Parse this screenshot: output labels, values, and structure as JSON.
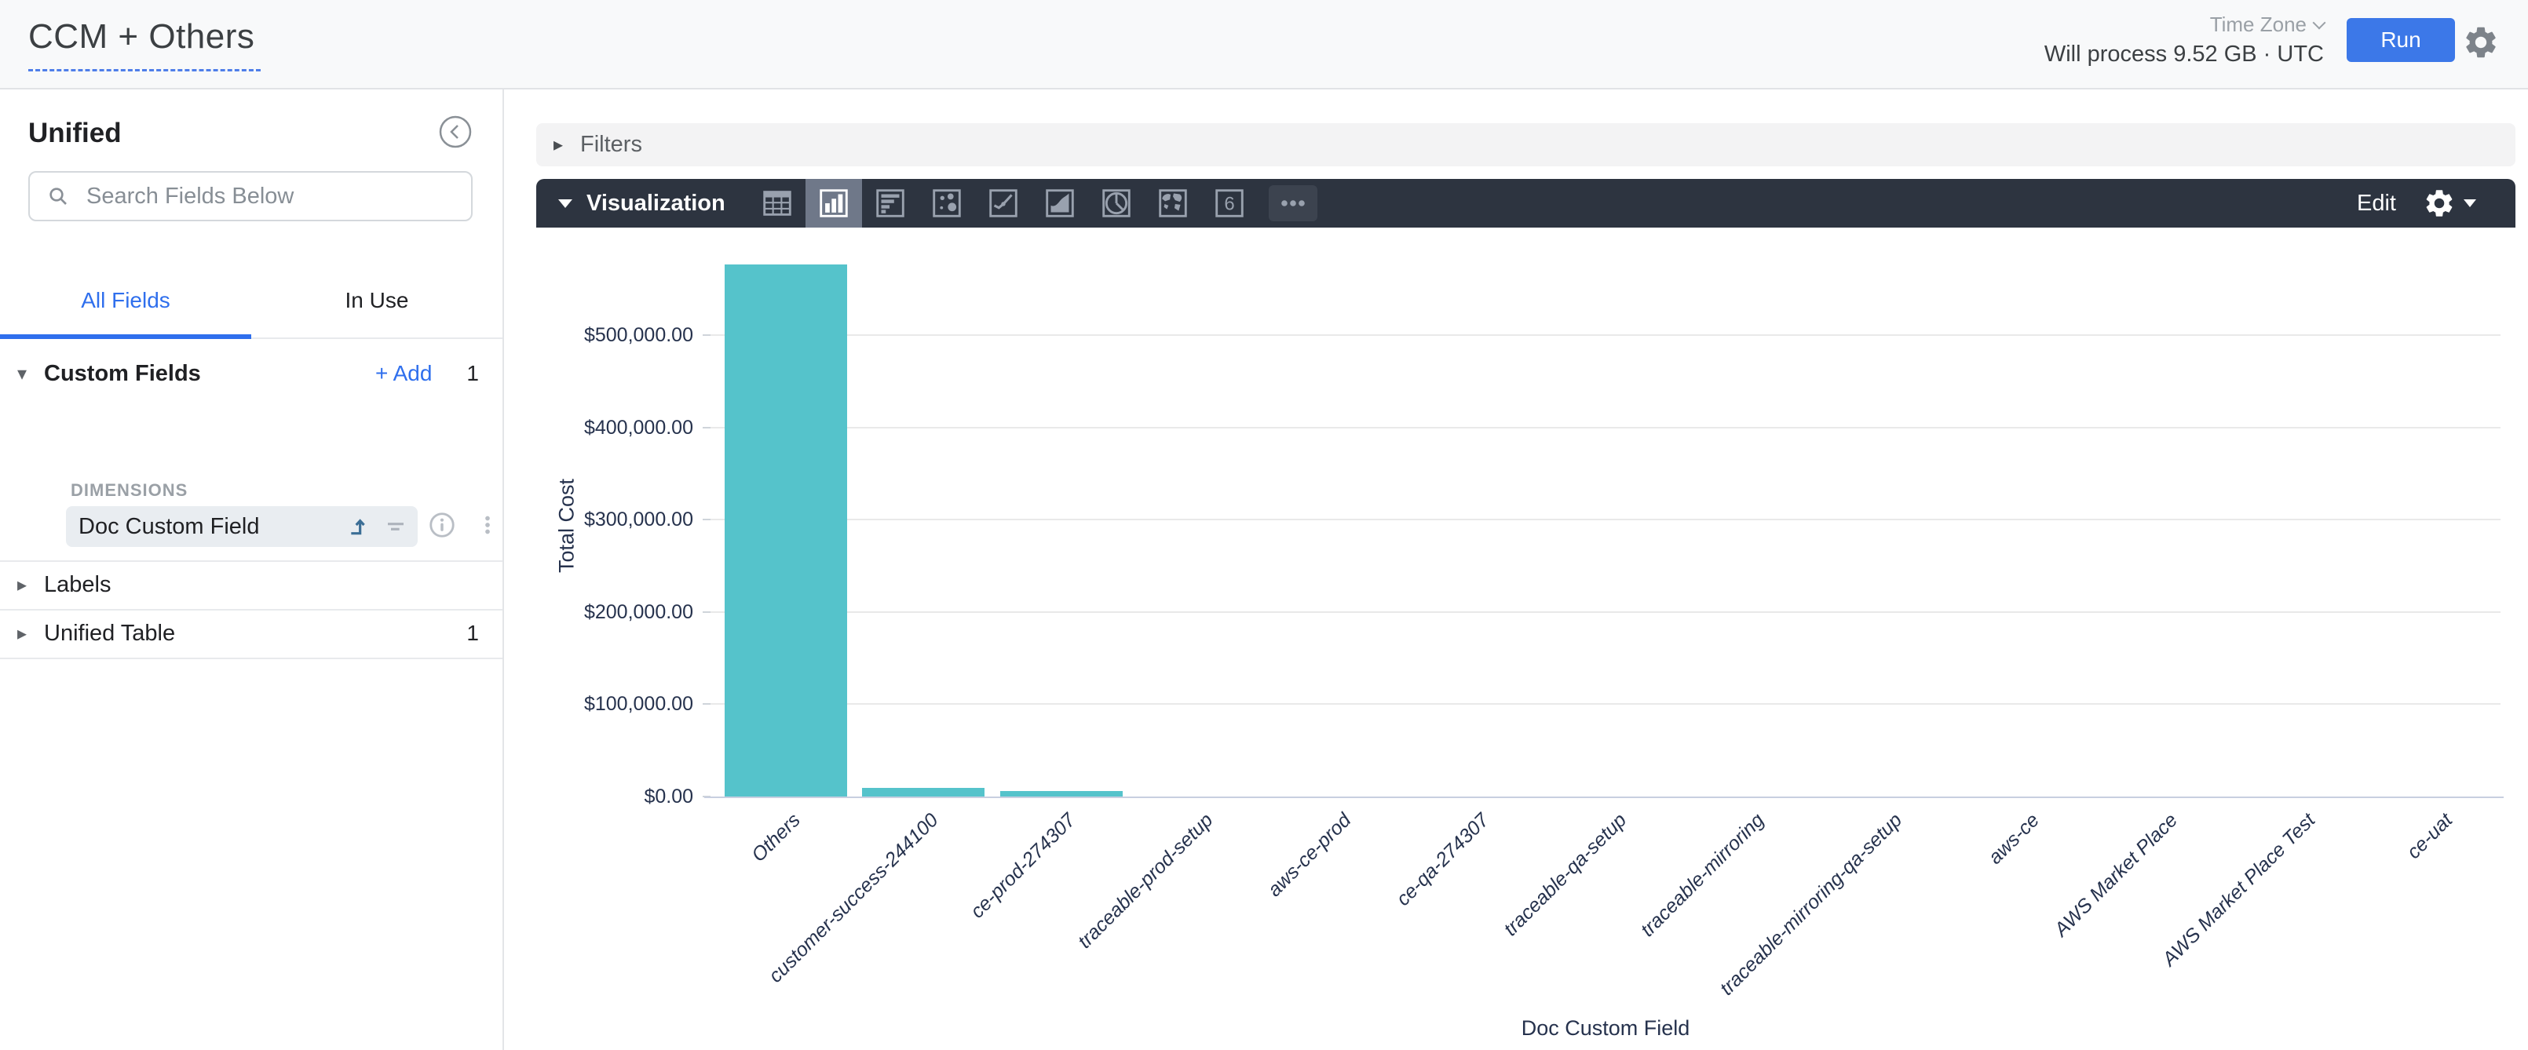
{
  "header": {
    "title": "CCM + Others",
    "time_zone_label": "Time Zone",
    "will_process": "Will process 9.52 GB · UTC",
    "run_label": "Run"
  },
  "sidebar": {
    "view_title": "Unified",
    "search_placeholder": "Search Fields Below",
    "tabs": {
      "all_fields": "All Fields",
      "in_use": "In Use"
    },
    "custom_fields": {
      "label": "Custom Fields",
      "add_label": "+ Add",
      "count": "1",
      "group_label": "DIMENSIONS",
      "field_name": "Doc Custom Field"
    },
    "labels_section": {
      "label": "Labels"
    },
    "unified_table_section": {
      "label": "Unified Table",
      "count": "1"
    }
  },
  "main": {
    "filters_label": "Filters",
    "visualization": {
      "label": "Visualization",
      "edit_label": "Edit",
      "chart_types": [
        {
          "name": "table"
        },
        {
          "name": "column",
          "selected": true
        },
        {
          "name": "bar"
        },
        {
          "name": "scatter"
        },
        {
          "name": "line"
        },
        {
          "name": "area"
        },
        {
          "name": "pie"
        },
        {
          "name": "map"
        },
        {
          "name": "single-value",
          "glyph": "6"
        },
        {
          "name": "more"
        }
      ]
    }
  },
  "chart_data": {
    "type": "bar",
    "title": "",
    "categories": [
      "Others",
      "customer-success-244100",
      "ce-prod-274307",
      "traceable-prod-setup",
      "aws-ce-prod",
      "ce-qa-274307",
      "traceable-qa-setup",
      "traceable-mirroring",
      "traceable-mirroring-qa-setup",
      "aws-ce",
      "AWS Market Place",
      "AWS Market Place Test",
      "ce-uat"
    ],
    "values": [
      576500,
      9500,
      5800,
      350,
      280,
      220,
      180,
      150,
      120,
      90,
      70,
      50,
      40
    ],
    "xlabel": "Doc Custom Field",
    "ylabel": "Total Cost",
    "ylim": [
      0,
      600000
    ],
    "yticks": [
      0,
      100000,
      200000,
      300000,
      400000,
      500000
    ],
    "ytick_labels": [
      "$0.00",
      "$100,000.00",
      "$200,000.00",
      "$300,000.00",
      "$400,000.00",
      "$500,000.00"
    ],
    "bar_color": "#55C3CB",
    "grid": true,
    "legend": "none"
  },
  "colors": {
    "accent_blue": "#2F6FED",
    "run_blue": "#3C78E8",
    "toolbar_bg": "#2D3440",
    "bar_teal": "#55C3CB"
  }
}
